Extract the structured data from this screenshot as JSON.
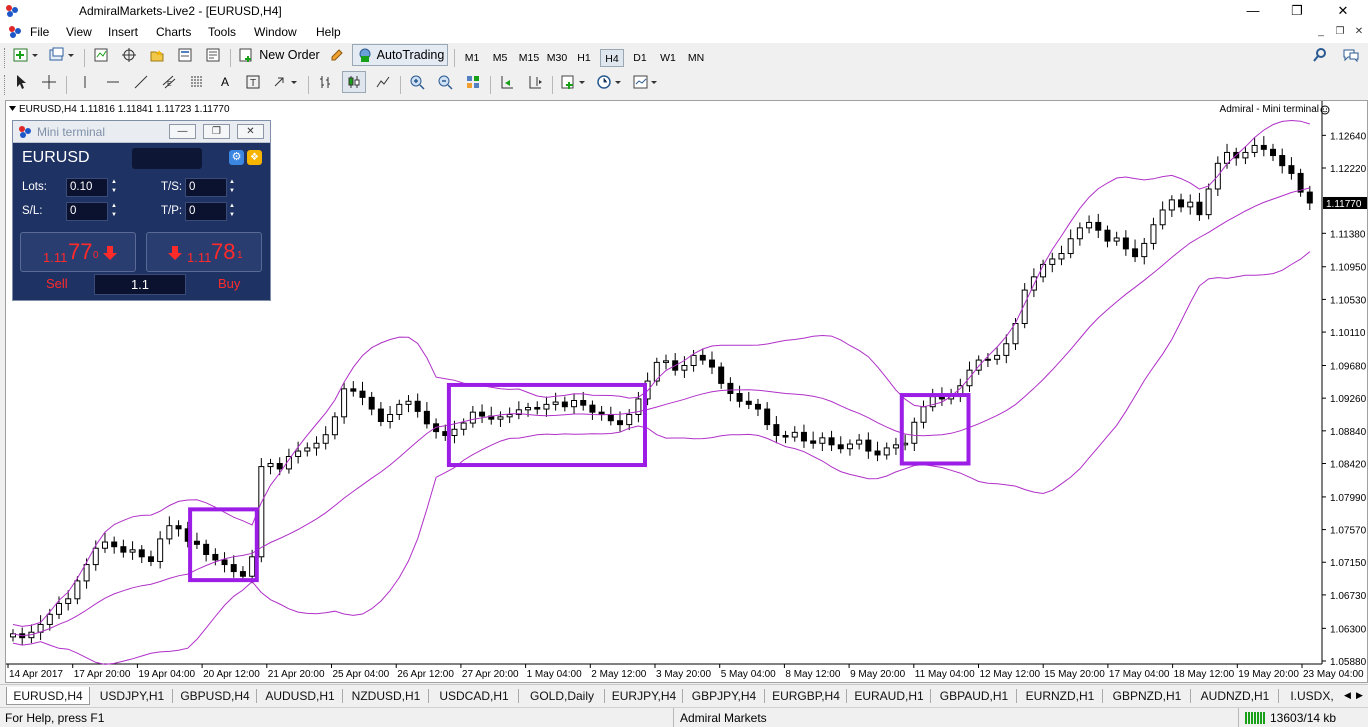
{
  "window": {
    "title": "AdmiralMarkets-Live2 - [EURUSD,H4]",
    "minimize": "—",
    "maximize": "❐",
    "close": "✕"
  },
  "menu": [
    "File",
    "View",
    "Insert",
    "Charts",
    "Tools",
    "Window",
    "Help"
  ],
  "toolbar": {
    "new_order": "New Order",
    "autotrading": "AutoTrading",
    "timeframes": [
      "M1",
      "M5",
      "M15",
      "M30",
      "H1",
      "H4",
      "D1",
      "W1",
      "MN"
    ],
    "active_timeframe": "H4"
  },
  "chart": {
    "info": "EURUSD,H4  1.11816 1.11841 1.11723 1.11770",
    "right_label": "Admiral - Mini terminal",
    "current_price": "1.11770",
    "y_labels": [
      "1.12640",
      "1.12220",
      "1.11770",
      "1.11380",
      "1.10950",
      "1.10530",
      "1.10110",
      "1.09680",
      "1.09260",
      "1.08840",
      "1.08420",
      "1.07990",
      "1.07570",
      "1.07150",
      "1.06730",
      "1.06300",
      "1.05880"
    ],
    "x_labels": [
      "14 Apr 2017",
      "17 Apr 20:00",
      "19 Apr 04:00",
      "20 Apr 12:00",
      "21 Apr 20:00",
      "25 Apr 04:00",
      "26 Apr 12:00",
      "27 Apr 20:00",
      "1 May 04:00",
      "2 May 12:00",
      "3 May 20:00",
      "5 May 04:00",
      "8 May 12:00",
      "9 May 20:00",
      "11 May 04:00",
      "12 May 12:00",
      "15 May 20:00",
      "17 May 04:00",
      "18 May 12:00",
      "19 May 20:00",
      "23 May 04:00"
    ],
    "colors": {
      "bands": "#b030c8",
      "highlight": "#9b1de6",
      "candle": "#000000"
    }
  },
  "chart_data": {
    "type": "candlestick",
    "symbol": "EURUSD",
    "timeframe": "H4",
    "ohlc_last": {
      "open": 1.11816,
      "high": 1.11841,
      "low": 1.11723,
      "close": 1.1177
    },
    "ylim": [
      1.0588,
      1.1285
    ],
    "close_path": [
      1.0623,
      1.0618,
      1.0625,
      1.0635,
      1.0648,
      1.0662,
      1.0668,
      1.0691,
      1.0712,
      1.0733,
      1.0741,
      1.0735,
      1.0728,
      1.0731,
      1.0722,
      1.0716,
      1.0745,
      1.0762,
      1.0758,
      1.0742,
      1.0738,
      1.0725,
      1.0718,
      1.0712,
      1.0703,
      1.0697,
      1.0722,
      1.0838,
      1.0842,
      1.0835,
      1.0851,
      1.0858,
      1.0862,
      1.0868,
      1.0879,
      1.0902,
      1.0938,
      1.0935,
      1.0927,
      1.0912,
      1.0896,
      1.0905,
      1.0918,
      1.0922,
      1.0909,
      1.0893,
      1.0883,
      1.0878,
      1.0886,
      1.0894,
      1.0908,
      1.0903,
      1.0899,
      1.0902,
      1.0905,
      1.0911,
      1.0914,
      1.0912,
      1.0918,
      1.0921,
      1.0915,
      1.0923,
      1.0917,
      1.0908,
      1.0905,
      1.0897,
      1.0892,
      1.0905,
      1.0925,
      1.0948,
      1.0972,
      1.0974,
      1.0962,
      1.0968,
      1.0981,
      1.0975,
      1.0966,
      1.0945,
      1.0932,
      1.0922,
      1.0918,
      1.0912,
      1.0892,
      1.0878,
      1.0876,
      1.0882,
      1.0871,
      1.0868,
      1.0875,
      1.0866,
      1.0861,
      1.0867,
      1.0872,
      1.0858,
      1.0853,
      1.0862,
      1.0866,
      1.0868,
      1.0895,
      1.0915,
      1.0928,
      1.0925,
      1.0931,
      1.0942,
      1.0962,
      1.0975,
      1.0976,
      1.0981,
      1.0996,
      1.1022,
      1.1065,
      1.1082,
      1.1098,
      1.1105,
      1.1112,
      1.1131,
      1.1145,
      1.1152,
      1.1142,
      1.1128,
      1.1132,
      1.1118,
      1.1108,
      1.1125,
      1.1149,
      1.1168,
      1.1181,
      1.1172,
      1.1178,
      1.1162,
      1.1195,
      1.1228,
      1.1242,
      1.1235,
      1.1242,
      1.1251,
      1.1246,
      1.1238,
      1.1225,
      1.1215,
      1.1191,
      1.1177
    ],
    "series": [
      {
        "name": "Bollinger upper"
      },
      {
        "name": "Bollinger middle"
      },
      {
        "name": "Bollinger lower"
      }
    ],
    "annotations": [
      {
        "type": "rectangle",
        "from": "20 Apr 12:00",
        "to": "21 Apr 20:00",
        "y": [
          1.0692,
          1.0783
        ]
      },
      {
        "type": "rectangle",
        "from": "27 Apr 20:00",
        "to": "3 May 20:00",
        "y": [
          1.084,
          1.0943
        ]
      },
      {
        "type": "rectangle",
        "from": "11 May 04:00",
        "to": "12 May 12:00",
        "y": [
          1.0842,
          1.093
        ]
      }
    ]
  },
  "mini_terminal": {
    "title": "Mini terminal",
    "symbol": "EURUSD",
    "lots_label": "Lots:",
    "lots_value": "0.10",
    "ts_label": "T/S:",
    "ts_value": "0",
    "sl_label": "S/L:",
    "sl_value": "0",
    "tp_label": "T/P:",
    "tp_value": "0",
    "sell_price_small": "1.11",
    "sell_price_big": "77",
    "sell_price_tiny": "0",
    "buy_price_small": "1.11",
    "buy_price_big": "78",
    "buy_price_tiny": "1",
    "sell_label": "Sell",
    "buy_label": "Buy",
    "spread": "1.1"
  },
  "tabs": [
    "EURUSD,H4",
    "USDJPY,H1",
    "GBPUSD,H4",
    "AUDUSD,H1",
    "NZDUSD,H1",
    "USDCAD,H1",
    "GOLD,Daily",
    "EURJPY,H4",
    "GBPJPY,H4",
    "EURGBP,H4",
    "EURAUD,H1",
    "GBPAUD,H1",
    "EURNZD,H1",
    "GBPNZD,H1",
    "AUDNZD,H1",
    "I.USDX,"
  ],
  "status": {
    "help": "For Help, press F1",
    "profile": "Admiral Markets",
    "traffic": "13603/14 kb"
  }
}
